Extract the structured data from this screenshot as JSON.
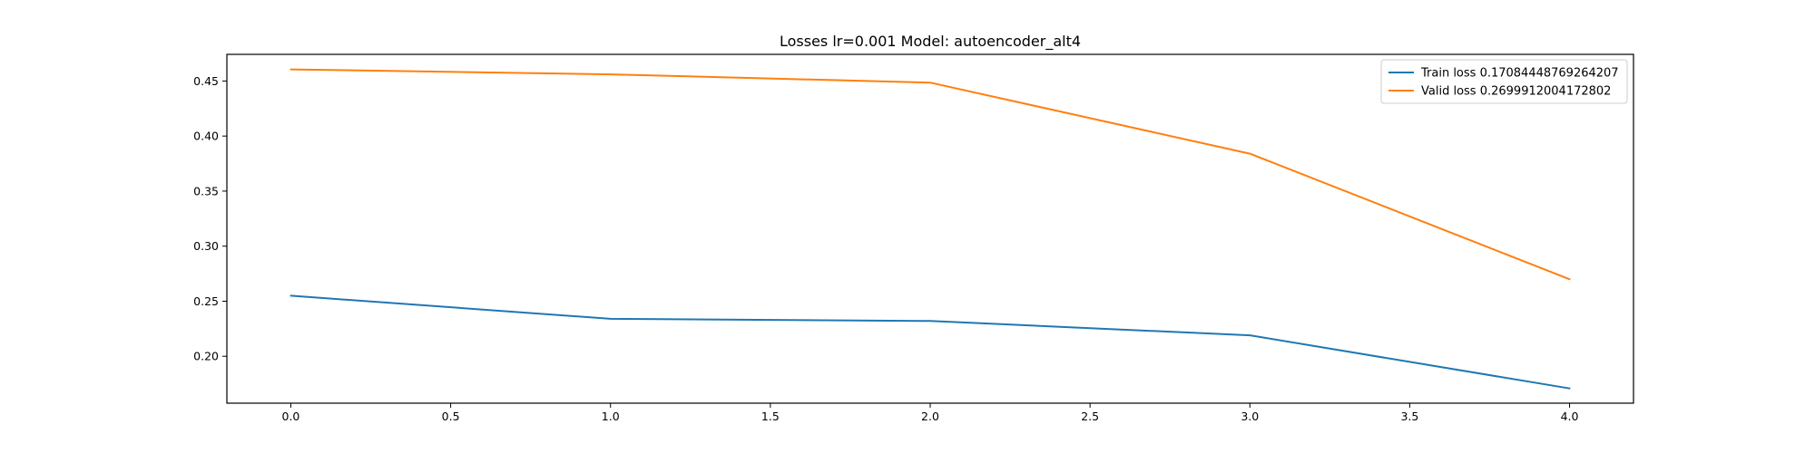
{
  "chart_data": {
    "type": "line",
    "title": "Losses lr=0.001 Model: autoencoder_alt4",
    "xlabel": "",
    "ylabel": "",
    "xlim": [
      -0.2,
      4.2
    ],
    "ylim": [
      0.1574,
      0.4742
    ],
    "x_ticks": [
      0.0,
      0.5,
      1.0,
      1.5,
      2.0,
      2.5,
      3.0,
      3.5,
      4.0
    ],
    "x_tick_labels": [
      "0.0",
      "0.5",
      "1.0",
      "1.5",
      "2.0",
      "2.5",
      "3.0",
      "3.5",
      "4.0"
    ],
    "y_ticks": [
      0.2,
      0.25,
      0.3,
      0.35,
      0.4,
      0.45
    ],
    "y_tick_labels": [
      "0.20",
      "0.25",
      "0.30",
      "0.35",
      "0.40",
      "0.45"
    ],
    "grid": false,
    "legend_position": "top-right",
    "x": [
      0,
      1,
      2,
      3,
      4
    ],
    "series": [
      {
        "name": "Train loss 0.17084448769264207",
        "color": "#1f77b4",
        "values": [
          0.255,
          0.234,
          0.232,
          0.219,
          0.1708
        ]
      },
      {
        "name": "Valid loss 0.2699912004172802",
        "color": "#ff7f0e",
        "values": [
          0.4605,
          0.456,
          0.4485,
          0.384,
          0.27
        ]
      }
    ]
  }
}
